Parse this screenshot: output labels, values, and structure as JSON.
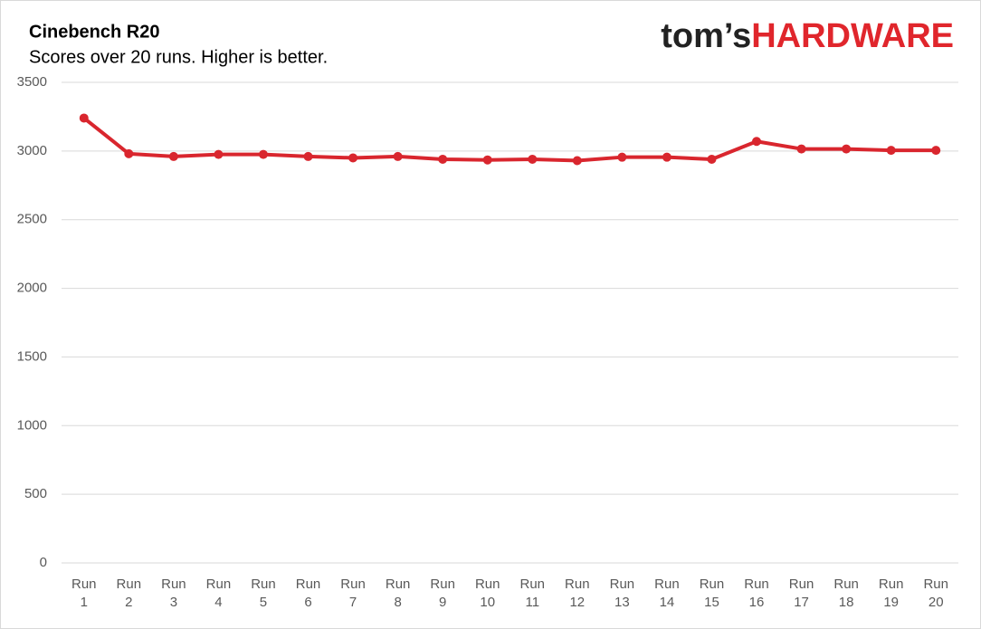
{
  "chart_data": {
    "type": "line",
    "title": "Cinebench R20",
    "subtitle": "Scores over 20 runs. Higher is better.",
    "logo": {
      "prefix": "tom’s",
      "brand": "HARDWARE"
    },
    "categories": [
      "Run 1",
      "Run 2",
      "Run 3",
      "Run 4",
      "Run 5",
      "Run 6",
      "Run 7",
      "Run 8",
      "Run 9",
      "Run 10",
      "Run 11",
      "Run 12",
      "Run 13",
      "Run 14",
      "Run 15",
      "Run 16",
      "Run 17",
      "Run 18",
      "Run 19",
      "Run 20"
    ],
    "series": [
      {
        "color": "#d9262e",
        "values": [
          3240,
          2980,
          2960,
          2975,
          2975,
          2960,
          2950,
          2960,
          2940,
          2935,
          2940,
          2930,
          2955,
          2955,
          2940,
          3070,
          3015,
          3015,
          3005,
          3005
        ]
      }
    ],
    "ylim": [
      0,
      3500
    ],
    "yticks": [
      0,
      500,
      1000,
      1500,
      2000,
      2500,
      3000,
      3500
    ],
    "grid": true
  }
}
